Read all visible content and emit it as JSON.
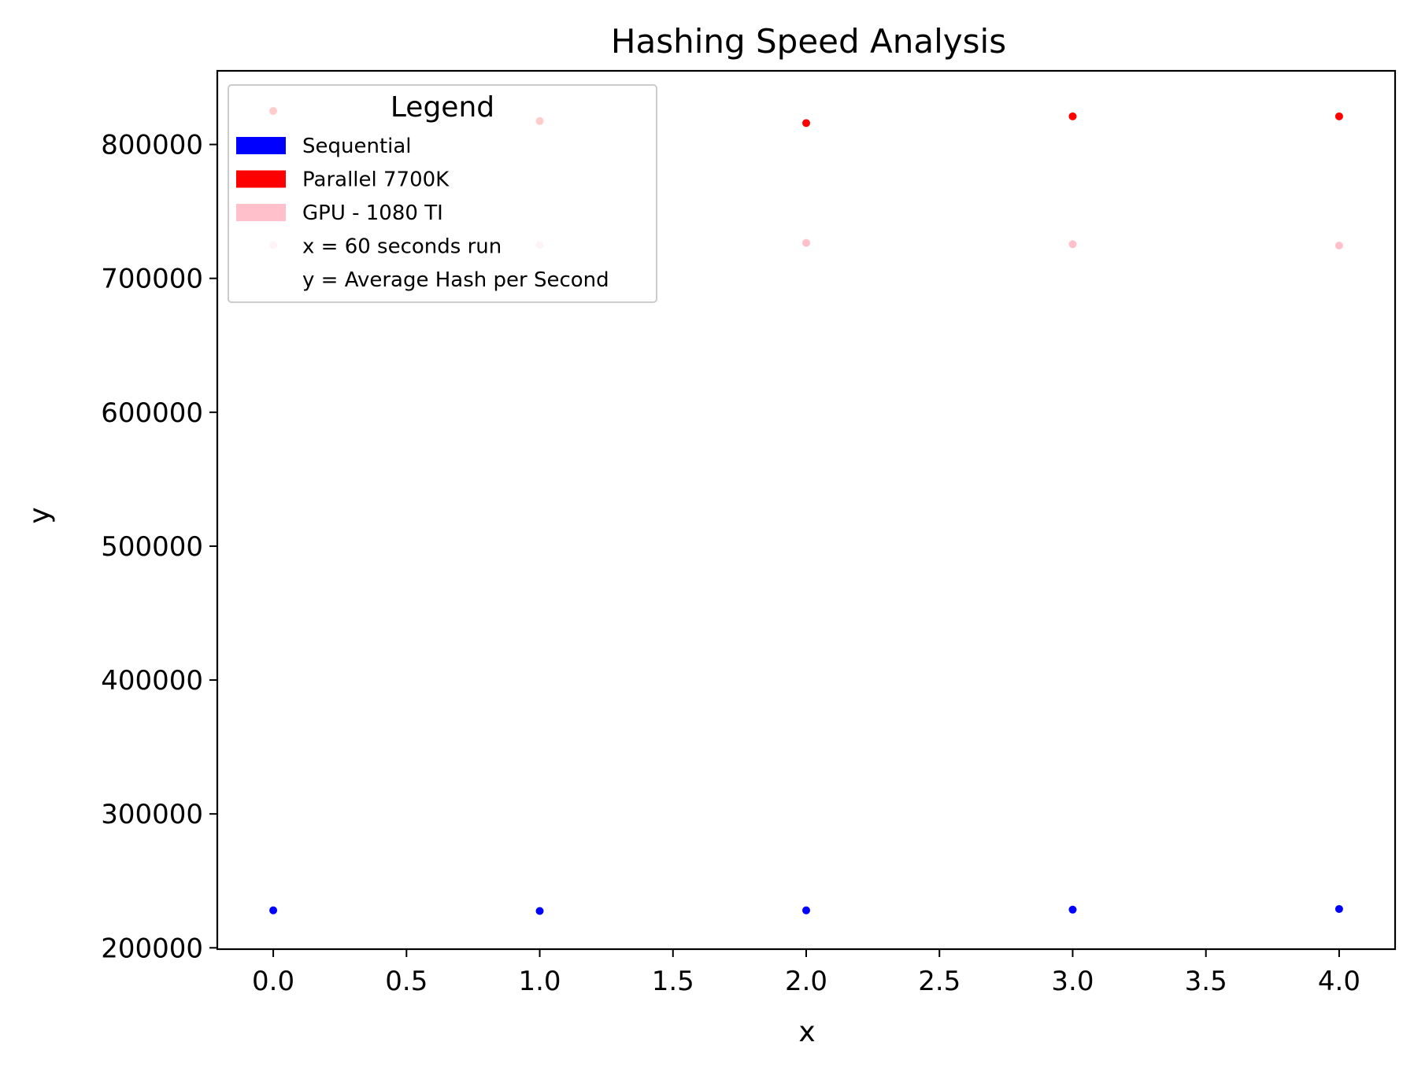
{
  "chart_data": {
    "type": "scatter",
    "title": "Hashing Speed Analysis",
    "xlabel": "x",
    "ylabel": "y",
    "xlim": [
      -0.21,
      4.21
    ],
    "ylim": [
      199000,
      855000
    ],
    "x_ticks": [
      0.0,
      0.5,
      1.0,
      1.5,
      2.0,
      2.5,
      3.0,
      3.5,
      4.0
    ],
    "x_tick_labels": [
      "0.0",
      "0.5",
      "1.0",
      "1.5",
      "2.0",
      "2.5",
      "3.0",
      "3.5",
      "4.0"
    ],
    "y_ticks": [
      200000,
      300000,
      400000,
      500000,
      600000,
      700000,
      800000
    ],
    "y_tick_labels": [
      "200000",
      "300000",
      "400000",
      "500000",
      "600000",
      "700000",
      "800000"
    ],
    "grid": false,
    "legend": {
      "title": "Legend",
      "placement": "top-left",
      "entries": [
        {
          "label": "Sequential",
          "color": "#0000ff",
          "swatch": true
        },
        {
          "label": "Parallel 7700K",
          "color": "#ff0000",
          "swatch": true
        },
        {
          "label": "GPU - 1080 TI",
          "color": "#ffc0cb",
          "swatch": true
        },
        {
          "label": "x = 60 seconds run",
          "color": "#ffffff",
          "swatch": false
        },
        {
          "label": "y = Average Hash per Second",
          "color": "#ffffff",
          "swatch": false
        }
      ]
    },
    "series": [
      {
        "color": "#0000ff",
        "x": [
          0,
          1,
          2,
          3,
          4
        ],
        "y": [
          228000,
          227500,
          228000,
          228500,
          229000
        ]
      },
      {
        "color": "#ff0000",
        "x": [
          0,
          1,
          2,
          3,
          4
        ],
        "y": [
          825000,
          817500,
          816000,
          821000,
          821000
        ]
      },
      {
        "color": "#ffc0cb",
        "x": [
          0,
          1,
          2,
          3,
          4
        ],
        "y": [
          725000,
          725000,
          726500,
          725500,
          724500
        ]
      }
    ]
  }
}
